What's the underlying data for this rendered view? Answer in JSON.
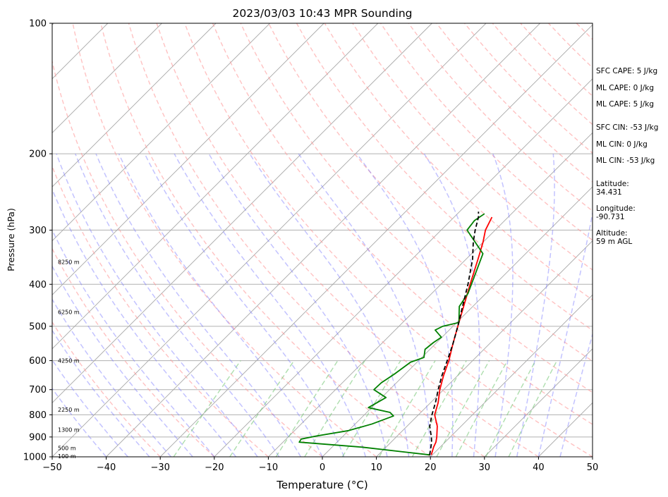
{
  "chart_data": {
    "type": "line",
    "subtype": "skew-t log-p sounding",
    "title": "2023/03/03 10:43 MPR Sounding",
    "xlabel": "Temperature (°C)",
    "ylabel": "Pressure (hPa)",
    "xlim": [
      -50,
      50
    ],
    "ylim": [
      1000,
      100
    ],
    "y_scale": "log",
    "x_ticks": [
      "−50",
      "−40",
      "−30",
      "−20",
      "−10",
      "0",
      "10",
      "20",
      "30",
      "40",
      "50"
    ],
    "y_ticks": [
      "100",
      "200",
      "300",
      "400",
      "500",
      "600",
      "700",
      "800",
      "900",
      "1000"
    ],
    "grid": true,
    "height_labels": [
      {
        "p": 355,
        "text": "8250 m"
      },
      {
        "p": 463,
        "text": "6250 m"
      },
      {
        "p": 600,
        "text": "4250 m"
      },
      {
        "p": 778,
        "text": "2250 m"
      },
      {
        "p": 866,
        "text": "1300 m"
      },
      {
        "p": 955,
        "text": "500 m"
      },
      {
        "p": 997,
        "text": "100 m"
      }
    ],
    "series": [
      {
        "kind": "temperature",
        "color": "#ff0000",
        "points": [
          [
            19.8,
            990
          ],
          [
            18.8,
            950
          ],
          [
            18.3,
            925
          ],
          [
            17.5,
            900
          ],
          [
            15.6,
            850
          ],
          [
            13.0,
            800
          ],
          [
            11.4,
            750
          ],
          [
            9.3,
            700
          ],
          [
            7.4,
            650
          ],
          [
            5.6,
            600
          ],
          [
            3.3,
            550
          ],
          [
            0.9,
            500
          ],
          [
            -1.7,
            450
          ],
          [
            -4.6,
            400
          ],
          [
            -7.8,
            350
          ],
          [
            -10.0,
            320
          ],
          [
            -11.8,
            300
          ],
          [
            -13.0,
            280
          ]
        ]
      },
      {
        "kind": "dewpoint",
        "color": "#008000",
        "points": [
          [
            19.6,
            990
          ],
          [
            14.4,
            975
          ],
          [
            5.6,
            950
          ],
          [
            -7.0,
            925
          ],
          [
            -7.2,
            910
          ],
          [
            -4.9,
            895
          ],
          [
            0.0,
            870
          ],
          [
            3.1,
            840
          ],
          [
            5.6,
            805
          ],
          [
            4.3,
            790
          ],
          [
            -0.6,
            770
          ],
          [
            0.8,
            730
          ],
          [
            -2.9,
            700
          ],
          [
            -2.8,
            675
          ],
          [
            -2.0,
            645
          ],
          [
            -1.4,
            615
          ],
          [
            -1.2,
            605
          ],
          [
            0.4,
            590
          ],
          [
            -0.9,
            565
          ],
          [
            -0.6,
            545
          ],
          [
            -0.1,
            530
          ],
          [
            -2.6,
            510
          ],
          [
            -1.9,
            500
          ],
          [
            0.4,
            490
          ],
          [
            -2.5,
            450
          ],
          [
            -3.3,
            420
          ],
          [
            -7.9,
            340
          ],
          [
            -15.2,
            300
          ],
          [
            -15.6,
            285
          ],
          [
            -15.0,
            275
          ]
        ]
      },
      {
        "kind": "parcel",
        "color": "#000000",
        "points": [
          [
            19.5,
            990
          ],
          [
            18.3,
            950
          ],
          [
            17.5,
            925
          ],
          [
            16.5,
            900
          ],
          [
            14.2,
            850
          ],
          [
            12.5,
            800
          ],
          [
            10.9,
            750
          ],
          [
            9.0,
            700
          ],
          [
            7.1,
            650
          ],
          [
            5.3,
            600
          ],
          [
            3.3,
            550
          ],
          [
            0.9,
            500
          ],
          [
            -1.9,
            450
          ],
          [
            -5.0,
            400
          ],
          [
            -8.8,
            350
          ],
          [
            -11.8,
            320
          ],
          [
            -13.7,
            300
          ],
          [
            -15.5,
            280
          ],
          [
            -16.5,
            272
          ]
        ]
      }
    ]
  },
  "side_panel": {
    "sfc_cape": "SFC CAPE: 5 J/kg",
    "ml_cape_1": "ML CAPE: 0 J/kg",
    "ml_cape_2": "ML CAPE: 5 J/kg",
    "sfc_cin": "SFC CIN: -53 J/kg",
    "ml_cin_1": "ML CIN: 0 J/kg",
    "ml_cin_2": "ML CIN: -53 J/kg",
    "latitude": "Latitude:\n34.431",
    "longitude": "Longitude:\n-90.731",
    "altitude": "Altitude:\n59 m AGL"
  }
}
